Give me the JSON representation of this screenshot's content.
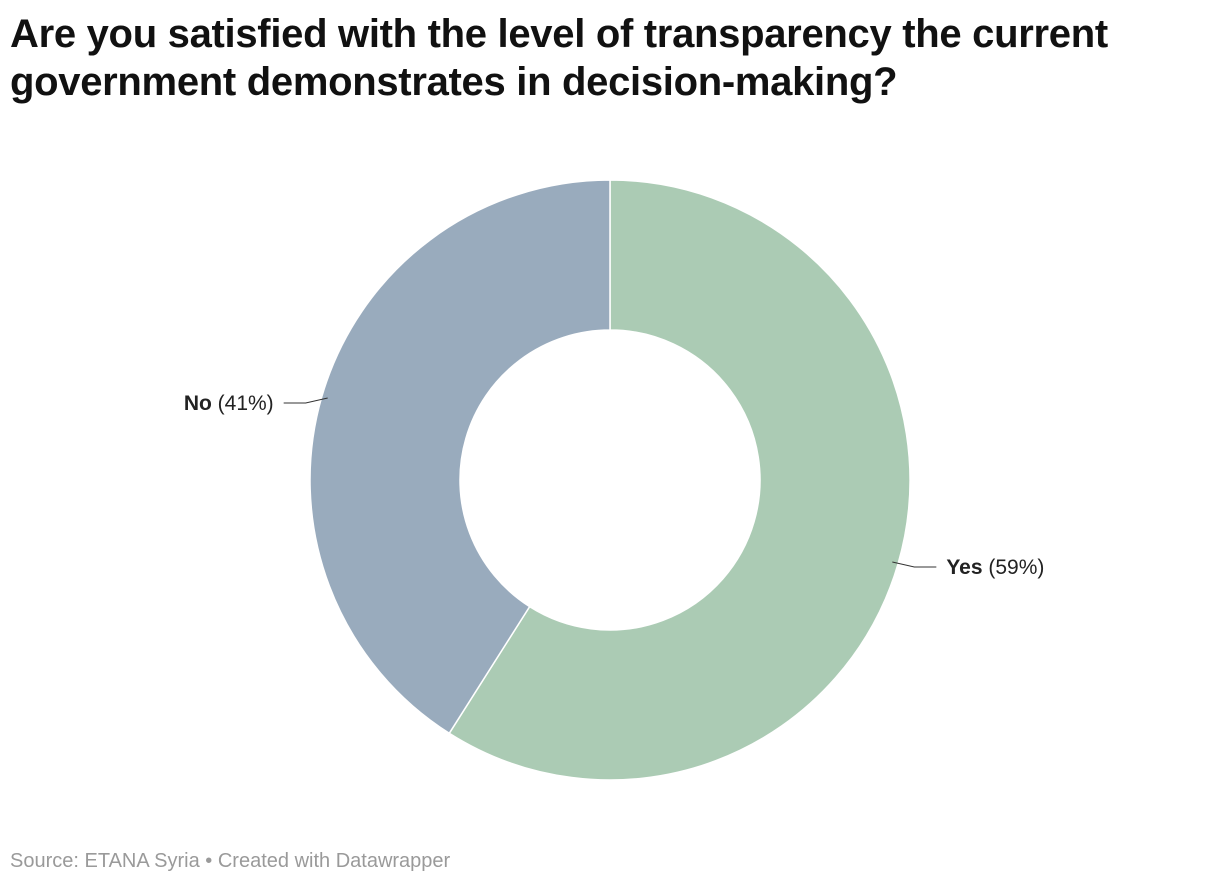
{
  "title": "Are you satisfied with the level of transparency the current government demonstrates in decision-making?",
  "chart_data": {
    "type": "pie",
    "donut": true,
    "title": "Are you satisfied with the level of transparency the current government demonstrates in decision-making?",
    "categories": [
      "Yes",
      "No"
    ],
    "values": [
      59,
      41
    ],
    "unit": "%",
    "value_labels": [
      "(59%)",
      "(41%)"
    ],
    "colors": [
      "#abcbb4",
      "#99abbd"
    ]
  },
  "footer": {
    "source_label": "Source:",
    "source_name": "ETANA Syria",
    "separator": "•",
    "credit": "Created with Datawrapper"
  }
}
